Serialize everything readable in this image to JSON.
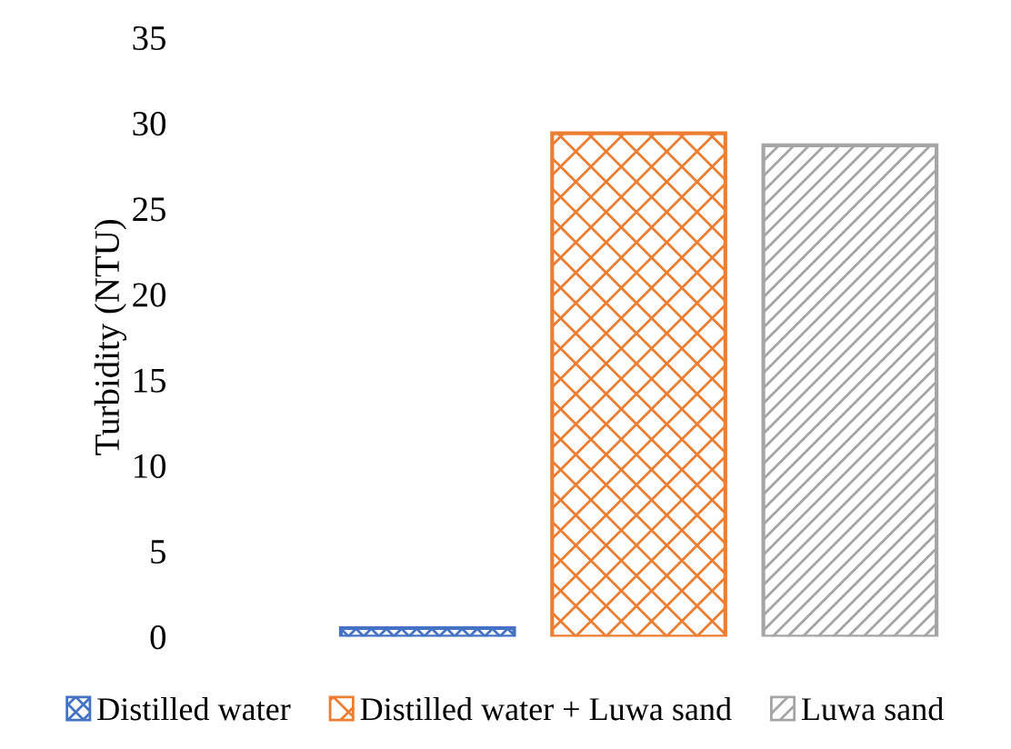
{
  "chart_data": {
    "type": "bar",
    "ylabel": "Turbidity (NTU)",
    "categories": [
      null
    ],
    "series": [
      {
        "name": "Distilled water",
        "color": "#4472c4",
        "values": [
          0.5
        ]
      },
      {
        "name": "Distilled water + Luwa sand",
        "color": "#ed7d31",
        "values": [
          29.4
        ]
      },
      {
        "name": "Luwa sand",
        "color": "#a5a5a5",
        "values": [
          28.7
        ]
      }
    ],
    "ylim": [
      0,
      35
    ],
    "yticks": [
      0,
      5,
      10,
      15,
      20,
      25,
      30,
      35
    ],
    "grid": false,
    "legend": "bottom"
  }
}
